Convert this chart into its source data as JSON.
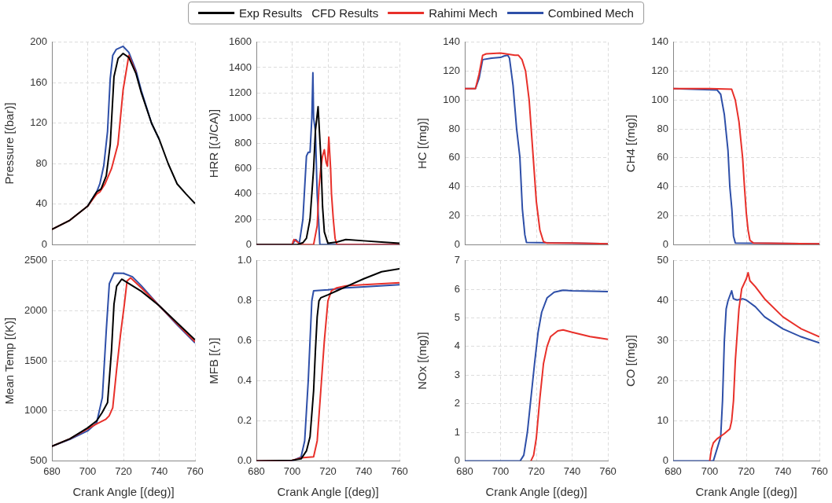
{
  "chart_data": [
    {
      "type": "line",
      "ylabel": "Pressure [(bar)]",
      "legend": "top",
      "legend_title": "CFD Results",
      "grid": true,
      "tick_labels": "y",
      "xlim": [
        680,
        760
      ],
      "xticks": [
        680,
        700,
        720,
        740,
        760
      ],
      "ylim": [
        0,
        200
      ],
      "yticks": [
        0,
        40,
        80,
        120,
        160,
        200
      ],
      "series": [
        {
          "name": "Exp Results",
          "color": "#000000",
          "x": [
            680,
            690,
            700,
            705,
            707.5,
            710.4,
            712.6,
            714.7,
            717,
            719.8,
            723,
            727,
            730,
            735.7,
            740,
            745,
            750,
            755,
            760
          ],
          "values": [
            15,
            24,
            38,
            52,
            55,
            68,
            99,
            166,
            184,
            189,
            185,
            169,
            150,
            120,
            104,
            80,
            60,
            50,
            40.6
          ]
        },
        {
          "name": "Rahimi Mech",
          "color": "#e8302a",
          "x": [
            680,
            690,
            700,
            705,
            706.8,
            709.7,
            713.3,
            716.9,
            719.8,
            723,
            727
          ],
          "values": [
            15,
            24,
            38,
            50,
            52,
            60,
            75,
            99,
            153,
            187,
            170
          ]
        },
        {
          "name": "Combined Mech",
          "color": "#2e4fa8",
          "x": [
            700,
            705,
            706.8,
            709,
            711.1,
            712.6,
            714,
            716,
            719.8,
            723,
            727,
            730,
            735.7,
            740
          ],
          "values": [
            38,
            52,
            60,
            78,
            112,
            164,
            187,
            193,
            196,
            190,
            172,
            152,
            120,
            104
          ]
        }
      ]
    },
    {
      "type": "line",
      "ylabel": "HRR [(J/CA)]",
      "grid": true,
      "tick_labels": "y",
      "xlim": [
        680,
        760
      ],
      "xticks": [
        680,
        700,
        720,
        740,
        760
      ],
      "ylim": [
        0,
        1600
      ],
      "yticks": [
        0,
        200,
        400,
        600,
        800,
        1000,
        1200,
        1400,
        1600
      ],
      "series": [
        {
          "color": "#000000",
          "x": [
            680,
            700,
            703,
            706,
            708,
            710,
            712,
            713,
            714.5,
            716,
            717,
            718,
            720,
            725,
            730,
            740,
            750,
            760
          ],
          "values": [
            0,
            0,
            0,
            15,
            50,
            200,
            600,
            900,
            1090,
            700,
            300,
            100,
            10,
            20,
            40,
            30,
            20,
            10
          ]
        },
        {
          "color": "#e8302a",
          "x": [
            680,
            700,
            701,
            703,
            705,
            712,
            714,
            715,
            716,
            717,
            718,
            719,
            719.7,
            720.5,
            721.5,
            722,
            723,
            724,
            725,
            760
          ],
          "values": [
            0,
            0,
            40,
            20,
            0,
            0,
            150,
            450,
            600,
            700,
            750,
            650,
            620,
            850,
            600,
            400,
            200,
            50,
            0,
            0
          ]
        },
        {
          "color": "#2e4fa8",
          "x": [
            680,
            700,
            702,
            704,
            706,
            708,
            709,
            710,
            711,
            711.6,
            712,
            713,
            714,
            715.5,
            760
          ],
          "values": [
            0,
            0,
            40,
            10,
            200,
            700,
            730,
            730,
            1000,
            1360,
            1000,
            900,
            400,
            0,
            0
          ]
        }
      ]
    },
    {
      "type": "line",
      "ylabel": "HC [(mg)]",
      "grid": true,
      "tick_labels": "y",
      "xlim": [
        680,
        760
      ],
      "xticks": [
        680,
        700,
        720,
        740,
        760
      ],
      "ylim": [
        0,
        140
      ],
      "yticks": [
        0,
        20,
        40,
        60,
        80,
        100,
        120,
        140
      ],
      "series": [
        {
          "color": "#e8302a",
          "x": [
            680,
            686,
            688,
            690,
            692,
            700,
            708,
            710,
            712,
            714,
            716,
            718,
            720,
            722,
            724,
            726,
            740,
            760
          ],
          "values": [
            108,
            108,
            118,
            131,
            132,
            132.5,
            131,
            131,
            128,
            120,
            100,
            65,
            30,
            10,
            2,
            1,
            1,
            0.5
          ]
        },
        {
          "color": "#2e4fa8",
          "x": [
            680,
            686,
            688,
            690,
            695,
            700,
            702,
            704,
            705,
            707,
            708,
            709,
            710.8,
            712.2,
            713.6,
            714.5,
            760
          ],
          "values": [
            108,
            108,
            115,
            128,
            129,
            129.5,
            130.5,
            131,
            129,
            110,
            95,
            80,
            60.7,
            24.7,
            6.7,
            1.5,
            0.5
          ]
        }
      ]
    },
    {
      "type": "line",
      "ylabel": "CH4 [(mg)]",
      "grid": true,
      "tick_labels": "y",
      "xlim": [
        680,
        760
      ],
      "xticks": [
        680,
        700,
        720,
        740,
        760
      ],
      "ylim": [
        0,
        140
      ],
      "yticks": [
        0,
        20,
        40,
        60,
        80,
        100,
        120,
        140
      ],
      "series": [
        {
          "color": "#e8302a",
          "x": [
            680,
            700,
            712,
            714,
            716,
            718,
            719,
            720,
            721,
            722,
            724,
            760
          ],
          "values": [
            108,
            108,
            107.5,
            100,
            85,
            60,
            40,
            22,
            10,
            3,
            1,
            0.5
          ]
        },
        {
          "color": "#2e4fa8",
          "x": [
            680,
            704,
            706,
            708,
            710,
            711,
            712.1,
            713,
            714,
            760
          ],
          "values": [
            108,
            107,
            104,
            90,
            65,
            40,
            24.7,
            6,
            1,
            0.5
          ]
        }
      ]
    },
    {
      "type": "line",
      "xlabel": "Crank Angle [(deg)]",
      "ylabel": "Mean Temp [(K)]",
      "grid": true,
      "xlim": [
        680,
        760
      ],
      "xticks": [
        680,
        700,
        720,
        740,
        760
      ],
      "ylim": [
        500,
        2500
      ],
      "yticks": [
        500,
        1000,
        1500,
        2000,
        2500
      ],
      "series": [
        {
          "color": "#000000",
          "x": [
            680,
            690,
            700,
            705,
            708,
            711.1,
            713.3,
            714.7,
            716.2,
            719,
            730,
            740,
            750,
            760
          ],
          "values": [
            645,
            720,
            830,
            900,
            980,
            1082,
            1600,
            2065,
            2246,
            2316,
            2195,
            2050,
            1880,
            1710
          ]
        },
        {
          "color": "#e8302a",
          "x": [
            680,
            690,
            700,
            705,
            710,
            712,
            714,
            716.2,
            718.3,
            720.5,
            722,
            724,
            730,
            740,
            750,
            760
          ],
          "values": [
            645,
            720,
            820,
            870,
            914,
            950,
            1030,
            1418,
            1755,
            2065,
            2298,
            2330,
            2230,
            2050,
            1870,
            1690
          ]
        },
        {
          "color": "#2e4fa8",
          "x": [
            680,
            690,
            700,
            705,
            708.2,
            710.4,
            712.1,
            714.7,
            720,
            725,
            730,
            740,
            750,
            760
          ],
          "values": [
            645,
            715,
            800,
            880,
            1134,
            1806,
            2272,
            2376,
            2375,
            2340,
            2250,
            2050,
            1860,
            1680
          ]
        }
      ]
    },
    {
      "type": "line",
      "xlabel": "Crank Angle [(deg)]",
      "ylabel": "MFB [(-)]",
      "grid": true,
      "xlim": [
        680,
        760
      ],
      "xticks": [
        680,
        700,
        720,
        740,
        760
      ],
      "ylim": [
        0,
        1
      ],
      "yticks": [
        {
          "value": 0,
          "label": "0.0"
        },
        0.2,
        0.4,
        0.6,
        0.8,
        {
          "value": 1,
          "label": "1.0"
        }
      ],
      "series": [
        {
          "color": "#000000",
          "x": [
            680,
            700,
            705,
            708,
            710,
            712,
            713,
            714,
            715,
            716,
            720,
            725,
            730,
            740,
            750,
            760
          ],
          "values": [
            0,
            0.003,
            0.01,
            0.05,
            0.12,
            0.35,
            0.55,
            0.72,
            0.8,
            0.815,
            0.83,
            0.85,
            0.87,
            0.91,
            0.945,
            0.96
          ]
        },
        {
          "color": "#e8302a",
          "x": [
            680,
            700,
            703,
            705,
            712,
            714,
            716,
            718,
            720,
            722,
            725,
            730,
            740,
            750,
            760
          ],
          "values": [
            0,
            0.003,
            0.01,
            0.015,
            0.02,
            0.1,
            0.35,
            0.6,
            0.8,
            0.85,
            0.865,
            0.875,
            0.88,
            0.885,
            0.89
          ]
        },
        {
          "color": "#2e4fa8",
          "x": [
            680,
            700,
            705,
            707,
            709,
            710,
            711,
            712,
            720,
            725,
            730,
            740,
            760
          ],
          "values": [
            0,
            0,
            0.02,
            0.1,
            0.4,
            0.6,
            0.8,
            0.85,
            0.855,
            0.86,
            0.865,
            0.87,
            0.88
          ]
        }
      ]
    },
    {
      "type": "line",
      "xlabel": "Crank Angle [(deg)]",
      "ylabel": "NOx [(mg)]",
      "grid": true,
      "xlim": [
        680,
        760
      ],
      "xticks": [
        680,
        700,
        720,
        740,
        760
      ],
      "ylim": [
        0,
        7
      ],
      "yticks": [
        0,
        1,
        2,
        3,
        4,
        5,
        6,
        7
      ],
      "series": [
        {
          "color": "#e8302a",
          "x": [
            717,
            718.5,
            720,
            722,
            724,
            726,
            728,
            732,
            735,
            740,
            750,
            760
          ],
          "values": [
            0,
            0.2,
            0.8,
            2.2,
            3.4,
            4,
            4.35,
            4.55,
            4.58,
            4.5,
            4.35,
            4.25
          ]
        },
        {
          "color": "#2e4fa8",
          "x": [
            680,
            711,
            713,
            715,
            717,
            719,
            721,
            723,
            726,
            730,
            735,
            740,
            760
          ],
          "values": [
            0,
            0,
            0.2,
            1,
            2.2,
            3.4,
            4.5,
            5.2,
            5.7,
            5.9,
            5.97,
            5.95,
            5.92
          ]
        }
      ]
    },
    {
      "type": "line",
      "xlabel": "Crank Angle [(deg)]",
      "ylabel": "CO [(mg)]",
      "grid": true,
      "xlim": [
        680,
        760
      ],
      "xticks": [
        680,
        700,
        720,
        740,
        760
      ],
      "ylim": [
        0,
        50
      ],
      "yticks": [
        0,
        10,
        20,
        30,
        40,
        50
      ],
      "series": [
        {
          "color": "#e8302a",
          "x": [
            700,
            701,
            702,
            704,
            708,
            711,
            712,
            713,
            714,
            716,
            717.5,
            720,
            721,
            722,
            725,
            730,
            740,
            750,
            760
          ],
          "values": [
            0,
            3,
            4.5,
            5.5,
            6.8,
            8,
            10,
            15,
            25,
            38,
            43,
            45.5,
            47,
            45,
            43.5,
            40.5,
            36,
            33,
            31
          ]
        },
        {
          "color": "#2e4fa8",
          "x": [
            680,
            702,
            704,
            706,
            707,
            708,
            709,
            710,
            712,
            713,
            715,
            718,
            720,
            725,
            730,
            740,
            750,
            760
          ],
          "values": [
            0,
            0,
            3,
            6,
            15,
            30,
            38,
            40,
            42.5,
            40.5,
            40.2,
            40.5,
            40.2,
            38.5,
            36,
            33,
            31,
            29.5
          ]
        }
      ]
    }
  ]
}
